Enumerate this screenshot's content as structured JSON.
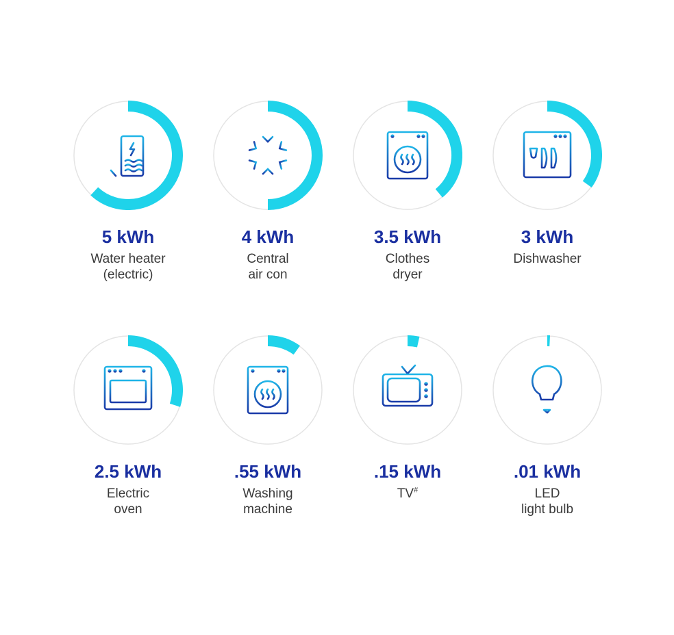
{
  "appliances": [
    {
      "value": "5 kWh",
      "label_lines": [
        "Water heater",
        "(electric)"
      ],
      "fill": 0.62,
      "icon": "water-heater-icon"
    },
    {
      "value": "4 kWh",
      "label_lines": [
        "Central",
        "air con"
      ],
      "fill": 0.5,
      "icon": "snowflake-icon"
    },
    {
      "value": "3.5 kWh",
      "label_lines": [
        "Clothes",
        "dryer"
      ],
      "fill": 0.39,
      "icon": "clothes-dryer-icon"
    },
    {
      "value": "3 kWh",
      "label_lines": [
        "Dishwasher"
      ],
      "fill": 0.35,
      "icon": "dishwasher-icon"
    },
    {
      "value": "2.5 kWh",
      "label_lines": [
        "Electric",
        "oven"
      ],
      "fill": 0.3,
      "icon": "oven-icon"
    },
    {
      "value": ".55 kWh",
      "label_lines": [
        "Washing",
        "machine"
      ],
      "fill": 0.1,
      "icon": "washing-machine-icon"
    },
    {
      "value": ".15 kWh",
      "label_lines": [
        "TV"
      ],
      "label_sup": "#",
      "fill": 0.035,
      "icon": "tv-icon"
    },
    {
      "value": ".01 kWh",
      "label_lines": [
        "LED",
        "light bulb"
      ],
      "fill": 0.008,
      "icon": "light-bulb-icon"
    }
  ],
  "colors": {
    "ring_fill": "#1fd3ea",
    "ring_track": "#e4e4e4",
    "value_text": "#1a2fa0",
    "icon_gradient_start": "#1fb5e8",
    "icon_gradient_end": "#1a3aa8"
  }
}
